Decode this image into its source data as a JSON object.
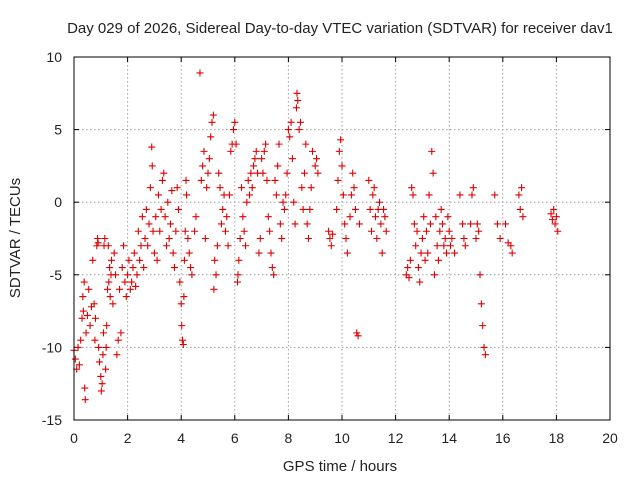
{
  "chart_data": {
    "type": "scatter",
    "title": "Day 029 of 2026, Sidereal Day-to-day VTEC variation (SDTVAR) for receiver dav1",
    "xlabel": "GPS time / hours",
    "ylabel": "SDTVAR / TECUs",
    "xlim": [
      0,
      20
    ],
    "ylim": [
      -15,
      10
    ],
    "xticks": [
      0,
      2,
      4,
      6,
      8,
      10,
      12,
      14,
      16,
      18,
      20
    ],
    "yticks": [
      -15,
      -10,
      -5,
      0,
      5,
      10
    ],
    "xtick_labels": [
      "0",
      "2",
      "4",
      "6",
      "8",
      "10",
      "12",
      "14",
      "16",
      "18",
      "20"
    ],
    "ytick_labels": [
      "-15",
      "-10",
      "-5",
      "0",
      "5",
      "10"
    ],
    "grid": true,
    "marker": "+",
    "color": "#e00000",
    "series": [
      {
        "name": "dav1",
        "points": [
          [
            0.0,
            -10.2
          ],
          [
            0.05,
            -10.8
          ],
          [
            0.1,
            -11.5
          ],
          [
            0.15,
            -10.0
          ],
          [
            0.2,
            -11.2
          ],
          [
            0.25,
            -9.5
          ],
          [
            0.3,
            -8.0
          ],
          [
            0.33,
            -6.5
          ],
          [
            0.35,
            -7.5
          ],
          [
            0.38,
            -5.5
          ],
          [
            0.4,
            -12.8
          ],
          [
            0.42,
            -13.6
          ],
          [
            0.45,
            -9.0
          ],
          [
            0.5,
            -7.8
          ],
          [
            0.55,
            -6.0
          ],
          [
            0.6,
            -8.5
          ],
          [
            0.65,
            -7.2
          ],
          [
            0.7,
            -4.0
          ],
          [
            0.75,
            -7.0
          ],
          [
            0.78,
            -9.5
          ],
          [
            0.8,
            -8.0
          ],
          [
            0.85,
            -3.0
          ],
          [
            0.88,
            -2.5
          ],
          [
            0.9,
            -2.8
          ],
          [
            0.92,
            -10.0
          ],
          [
            0.95,
            -11.0
          ],
          [
            1.0,
            -12.0
          ],
          [
            1.02,
            -13.0
          ],
          [
            1.05,
            -12.5
          ],
          [
            1.08,
            -10.5
          ],
          [
            1.1,
            -9.0
          ],
          [
            1.12,
            -3.0
          ],
          [
            1.15,
            -2.5
          ],
          [
            1.18,
            -11.5
          ],
          [
            1.2,
            -10.0
          ],
          [
            1.22,
            -8.5
          ],
          [
            1.25,
            -6.0
          ],
          [
            1.28,
            -3.0
          ],
          [
            1.3,
            -5.5
          ],
          [
            1.33,
            -4.5
          ],
          [
            1.35,
            -6.5
          ],
          [
            1.38,
            -5.0
          ],
          [
            1.4,
            -4.0
          ],
          [
            1.45,
            -7.0
          ],
          [
            1.5,
            -3.5
          ],
          [
            1.55,
            -5.0
          ],
          [
            1.6,
            -10.5
          ],
          [
            1.65,
            -9.5
          ],
          [
            1.7,
            -6.0
          ],
          [
            1.75,
            -9.0
          ],
          [
            1.8,
            -4.5
          ],
          [
            1.85,
            -3.0
          ],
          [
            1.9,
            -5.5
          ],
          [
            1.95,
            -6.5
          ],
          [
            2.0,
            -5.0
          ],
          [
            2.05,
            -4.0
          ],
          [
            2.1,
            -6.0
          ],
          [
            2.15,
            -5.5
          ],
          [
            2.2,
            -4.5
          ],
          [
            2.25,
            -3.5
          ],
          [
            2.3,
            -5.8
          ],
          [
            2.35,
            -5.0
          ],
          [
            2.4,
            -2.0
          ],
          [
            2.45,
            -4.0
          ],
          [
            2.5,
            -3.0
          ],
          [
            2.55,
            -1.0
          ],
          [
            2.6,
            -4.5
          ],
          [
            2.65,
            -2.5
          ],
          [
            2.7,
            -0.5
          ],
          [
            2.75,
            -3.0
          ],
          [
            2.8,
            -1.5
          ],
          [
            2.85,
            1.0
          ],
          [
            2.9,
            3.8
          ],
          [
            2.92,
            2.5
          ],
          [
            2.95,
            -2.0
          ],
          [
            3.0,
            -3.5
          ],
          [
            3.05,
            -1.0
          ],
          [
            3.1,
            -4.0
          ],
          [
            3.15,
            0.5
          ],
          [
            3.2,
            -2.0
          ],
          [
            3.25,
            -0.5
          ],
          [
            3.3,
            1.5
          ],
          [
            3.35,
            2.0
          ],
          [
            3.4,
            -1.0
          ],
          [
            3.45,
            -3.0
          ],
          [
            3.5,
            0.0
          ],
          [
            3.55,
            -2.5
          ],
          [
            3.6,
            -1.5
          ],
          [
            3.65,
            0.8
          ],
          [
            3.7,
            -3.5
          ],
          [
            3.75,
            -4.5
          ],
          [
            3.8,
            -2.0
          ],
          [
            3.85,
            1.0
          ],
          [
            3.9,
            -0.5
          ],
          [
            3.95,
            -5.5
          ],
          [
            4.0,
            -7.0
          ],
          [
            4.02,
            -8.5
          ],
          [
            4.05,
            -9.5
          ],
          [
            4.08,
            -9.8
          ],
          [
            4.1,
            -6.5
          ],
          [
            4.12,
            -4.0
          ],
          [
            4.15,
            -2.0
          ],
          [
            4.18,
            1.5
          ],
          [
            4.2,
            0.5
          ],
          [
            4.25,
            -2.5
          ],
          [
            4.3,
            -3.5
          ],
          [
            4.35,
            -4.5
          ],
          [
            4.4,
            -5.0
          ],
          [
            4.5,
            -2.0
          ],
          [
            4.55,
            -1.0
          ],
          [
            4.7,
            8.9
          ],
          [
            4.75,
            1.5
          ],
          [
            4.8,
            2.5
          ],
          [
            4.85,
            3.5
          ],
          [
            4.9,
            -2.5
          ],
          [
            4.95,
            1.0
          ],
          [
            5.0,
            2.0
          ],
          [
            5.05,
            3.0
          ],
          [
            5.1,
            4.5
          ],
          [
            5.15,
            5.5
          ],
          [
            5.2,
            6.0
          ],
          [
            5.22,
            -6.0
          ],
          [
            5.25,
            -4.0
          ],
          [
            5.3,
            -5.0
          ],
          [
            5.35,
            -3.0
          ],
          [
            5.4,
            2.0
          ],
          [
            5.45,
            1.0
          ],
          [
            5.5,
            -1.5
          ],
          [
            5.55,
            -0.5
          ],
          [
            5.6,
            0.5
          ],
          [
            5.65,
            -2.0
          ],
          [
            5.7,
            -1.0
          ],
          [
            5.75,
            -3.0
          ],
          [
            5.8,
            0.5
          ],
          [
            5.85,
            3.5
          ],
          [
            5.9,
            4.0
          ],
          [
            5.95,
            5.0
          ],
          [
            6.0,
            5.5
          ],
          [
            6.05,
            4.0
          ],
          [
            6.1,
            -5.5
          ],
          [
            6.12,
            -5.0
          ],
          [
            6.15,
            -4.0
          ],
          [
            6.2,
            -2.5
          ],
          [
            6.25,
            1.0
          ],
          [
            6.3,
            -1.0
          ],
          [
            6.35,
            -2.0
          ],
          [
            6.4,
            -3.0
          ],
          [
            6.45,
            0.0
          ],
          [
            6.5,
            1.5
          ],
          [
            6.55,
            0.5
          ],
          [
            6.6,
            2.0
          ],
          [
            6.65,
            1.0
          ],
          [
            6.7,
            2.5
          ],
          [
            6.75,
            3.0
          ],
          [
            6.8,
            3.5
          ],
          [
            6.85,
            2.0
          ],
          [
            6.9,
            -3.5
          ],
          [
            6.95,
            -2.5
          ],
          [
            7.0,
            3.0
          ],
          [
            7.05,
            2.0
          ],
          [
            7.1,
            3.5
          ],
          [
            7.15,
            4.0
          ],
          [
            7.2,
            1.5
          ],
          [
            7.25,
            -1.0
          ],
          [
            7.3,
            -2.0
          ],
          [
            7.35,
            -3.5
          ],
          [
            7.4,
            -4.5
          ],
          [
            7.45,
            -5.0
          ],
          [
            7.5,
            1.5
          ],
          [
            7.55,
            0.5
          ],
          [
            7.6,
            2.5
          ],
          [
            7.65,
            4.0
          ],
          [
            7.7,
            -1.5
          ],
          [
            7.75,
            -2.5
          ],
          [
            7.8,
            0.0
          ],
          [
            7.85,
            -0.5
          ],
          [
            7.9,
            0.5
          ],
          [
            7.95,
            2.0
          ],
          [
            8.0,
            5.0
          ],
          [
            8.05,
            4.5
          ],
          [
            8.1,
            5.5
          ],
          [
            8.15,
            3.0
          ],
          [
            8.2,
            0.0
          ],
          [
            8.25,
            -1.5
          ],
          [
            8.3,
            6.5
          ],
          [
            8.32,
            7.5
          ],
          [
            8.35,
            7.0
          ],
          [
            8.4,
            5.0
          ],
          [
            8.45,
            5.5
          ],
          [
            8.5,
            1.0
          ],
          [
            8.55,
            -0.5
          ],
          [
            8.6,
            2.0
          ],
          [
            8.65,
            4.0
          ],
          [
            8.7,
            -1.5
          ],
          [
            8.75,
            -2.5
          ],
          [
            8.8,
            -0.5
          ],
          [
            8.85,
            1.0
          ],
          [
            8.9,
            3.5
          ],
          [
            9.0,
            2.5
          ],
          [
            9.05,
            3.0
          ],
          [
            9.1,
            2.0
          ],
          [
            9.5,
            -2.0
          ],
          [
            9.55,
            -2.5
          ],
          [
            9.6,
            -3.0
          ],
          [
            9.65,
            -2.2
          ],
          [
            9.8,
            -0.5
          ],
          [
            9.85,
            1.5
          ],
          [
            9.9,
            3.5
          ],
          [
            9.95,
            4.3
          ],
          [
            10.0,
            2.5
          ],
          [
            10.05,
            0.5
          ],
          [
            10.1,
            -1.5
          ],
          [
            10.15,
            -2.5
          ],
          [
            10.2,
            -3.5
          ],
          [
            10.3,
            -1.0
          ],
          [
            10.35,
            0.5
          ],
          [
            10.4,
            2.0
          ],
          [
            10.45,
            1.0
          ],
          [
            10.5,
            -0.5
          ],
          [
            10.55,
            -9.0
          ],
          [
            10.6,
            -9.2
          ],
          [
            10.65,
            -1.5
          ],
          [
            11.0,
            1.5
          ],
          [
            11.05,
            -0.5
          ],
          [
            11.1,
            -2.0
          ],
          [
            11.15,
            0.5
          ],
          [
            11.2,
            1.0
          ],
          [
            11.25,
            -1.0
          ],
          [
            11.3,
            -2.5
          ],
          [
            11.35,
            -0.5
          ],
          [
            11.4,
            0.0
          ],
          [
            11.45,
            -1.5
          ],
          [
            11.5,
            -3.5
          ],
          [
            11.55,
            -0.5
          ],
          [
            11.6,
            -1.0
          ],
          [
            11.65,
            -2.0
          ],
          [
            12.4,
            -5.0
          ],
          [
            12.45,
            -4.5
          ],
          [
            12.5,
            -5.2
          ],
          [
            12.55,
            -4.0
          ],
          [
            12.6,
            1.0
          ],
          [
            12.65,
            0.5
          ],
          [
            12.7,
            -1.5
          ],
          [
            12.75,
            -3.0
          ],
          [
            12.8,
            -2.0
          ],
          [
            12.85,
            -4.5
          ],
          [
            12.9,
            -5.5
          ],
          [
            12.95,
            -3.5
          ],
          [
            13.0,
            -2.5
          ],
          [
            13.05,
            -1.0
          ],
          [
            13.1,
            -4.0
          ],
          [
            13.15,
            -2.0
          ],
          [
            13.2,
            -3.5
          ],
          [
            13.25,
            0.5
          ],
          [
            13.3,
            -1.5
          ],
          [
            13.35,
            3.5
          ],
          [
            13.4,
            2.0
          ],
          [
            13.45,
            -5.0
          ],
          [
            13.5,
            -1.0
          ],
          [
            13.55,
            -3.0
          ],
          [
            13.6,
            -4.0
          ],
          [
            13.65,
            -2.0
          ],
          [
            13.7,
            -0.5
          ],
          [
            13.75,
            -1.5
          ],
          [
            13.8,
            -3.0
          ],
          [
            13.85,
            -2.5
          ],
          [
            13.9,
            -3.5
          ],
          [
            13.95,
            -1.0
          ],
          [
            14.0,
            -2.0
          ],
          [
            14.05,
            -3.0
          ],
          [
            14.1,
            -2.5
          ],
          [
            14.2,
            -3.5
          ],
          [
            14.4,
            0.5
          ],
          [
            14.5,
            -1.5
          ],
          [
            14.55,
            -2.5
          ],
          [
            14.6,
            -3.0
          ],
          [
            14.8,
            -1.5
          ],
          [
            14.85,
            0.5
          ],
          [
            14.9,
            1.0
          ],
          [
            15.0,
            -2.5
          ],
          [
            15.05,
            -1.5
          ],
          [
            15.1,
            -2.0
          ],
          [
            15.15,
            -5.0
          ],
          [
            15.2,
            -7.0
          ],
          [
            15.25,
            -8.5
          ],
          [
            15.3,
            -10.0
          ],
          [
            15.35,
            -10.5
          ],
          [
            15.7,
            0.5
          ],
          [
            15.8,
            -1.5
          ],
          [
            15.9,
            -2.5
          ],
          [
            16.1,
            -1.5
          ],
          [
            16.2,
            -2.8
          ],
          [
            16.3,
            -3.0
          ],
          [
            16.35,
            -3.5
          ],
          [
            16.6,
            0.5
          ],
          [
            16.65,
            -0.5
          ],
          [
            16.7,
            1.0
          ],
          [
            16.75,
            -1.0
          ],
          [
            17.8,
            -0.8
          ],
          [
            17.85,
            -1.2
          ],
          [
            17.9,
            -0.5
          ],
          [
            17.95,
            -1.5
          ],
          [
            18.0,
            -1.0
          ],
          [
            18.05,
            -2.0
          ]
        ]
      }
    ]
  }
}
